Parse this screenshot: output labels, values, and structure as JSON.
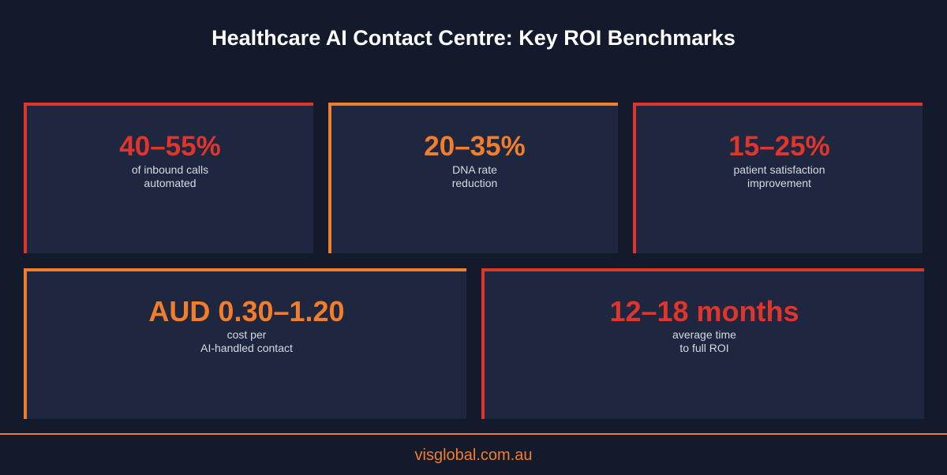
{
  "title": "Healthcare AI Contact Centre: Key ROI Benchmarks",
  "colors": {
    "background": "#131a2b",
    "card": "#1f2740",
    "red": "#e0352b",
    "orange": "#f27d2a"
  },
  "cards": [
    {
      "value": "40–55%",
      "label_line1": "of inbound calls",
      "label_line2": "automated",
      "accent": "red"
    },
    {
      "value": "20–35%",
      "label_line1": "DNA rate",
      "label_line2": "reduction",
      "accent": "orange"
    },
    {
      "value": "15–25%",
      "label_line1": "patient satisfaction",
      "label_line2": "improvement",
      "accent": "red"
    },
    {
      "value": "AUD 0.30–1.20",
      "label_line1": "cost per",
      "label_line2": "AI-handled contact",
      "accent": "orange"
    },
    {
      "value": "12–18 months",
      "label_line1": "average time",
      "label_line2": "to full ROI",
      "accent": "red"
    }
  ],
  "footer": "visglobal.com.au"
}
